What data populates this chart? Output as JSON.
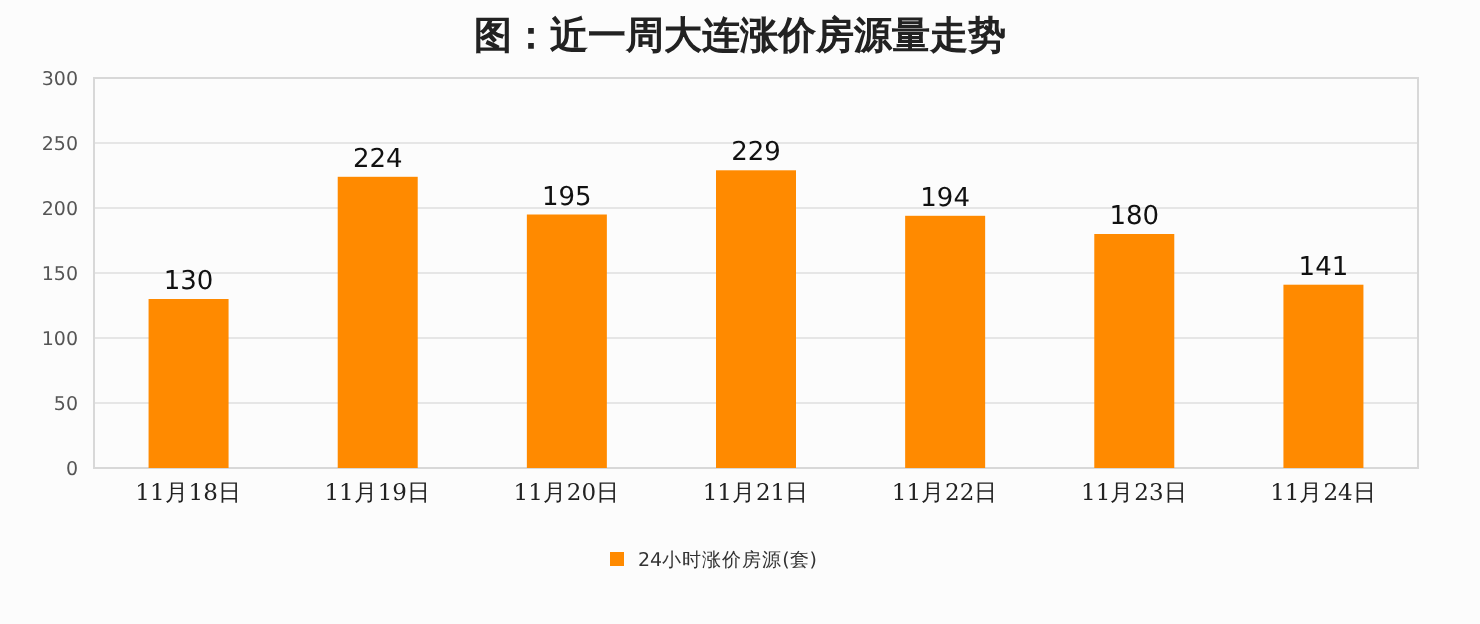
{
  "chart_data": {
    "type": "bar",
    "title": "图：近一周大连涨价房源量走势",
    "categories": [
      "11月18日",
      "11月19日",
      "11月20日",
      "11月21日",
      "11月22日",
      "11月23日",
      "11月24日"
    ],
    "series": [
      {
        "name": "24小时涨价房源(套)",
        "color": "#ff8a00",
        "values": [
          130,
          224,
          195,
          229,
          194,
          180,
          141
        ]
      }
    ],
    "ylim": [
      0,
      300
    ],
    "yticks": [
      0,
      50,
      100,
      150,
      200,
      250,
      300
    ],
    "grid": "y",
    "legend": "bottom",
    "data_labels": true
  }
}
